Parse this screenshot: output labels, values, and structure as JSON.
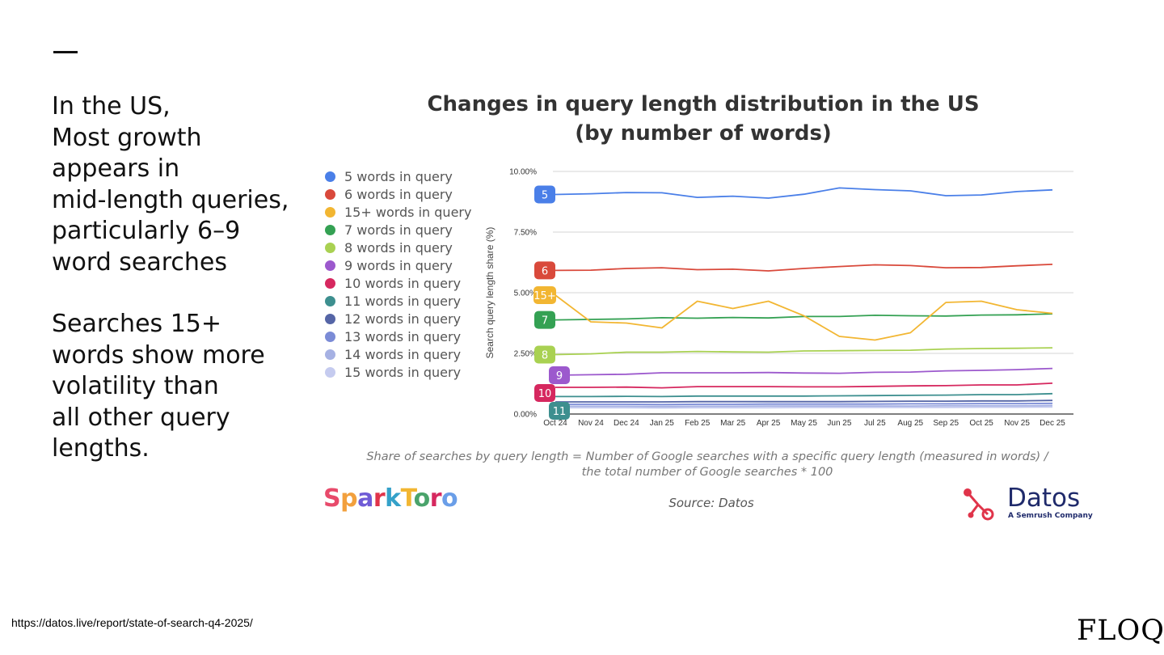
{
  "slide": {
    "text_lines_1": [
      "In the US,",
      "Most growth",
      "appears in",
      "mid-length queries,",
      "particularly 6–9",
      "word searches"
    ],
    "text_lines_2": [
      "Searches 15+",
      "words show more",
      "volatility than",
      "all other query",
      "lengths."
    ],
    "caption_line1": "Share of searches by query length = Number of Google searches with a specific query length (measured in words) /",
    "caption_line2": "the total number of Google searches * 100",
    "source": "Source: Datos",
    "sparktoro_logo": "SparkToro",
    "datos_logo": "Datos",
    "datos_sub": "A Semrush Company",
    "url": "https://datos.live/report/state-of-search-q4-2025/",
    "floq_logo": "FLOQ"
  },
  "chart_data": {
    "type": "line",
    "title_line1": "Changes in query length distribution in the US",
    "title_line2": "(by number of words)",
    "ylabel": "Search query length share (%)",
    "xlabel": "",
    "ylim": [
      0,
      10
    ],
    "yticks": [
      0,
      2.5,
      5,
      7.5,
      10
    ],
    "ytick_labels": [
      "0.00%",
      "2.50%",
      "5.00%",
      "7.50%",
      "10.00%"
    ],
    "categories": [
      "Oct 24",
      "Nov 24",
      "Dec 24",
      "Jan 25",
      "Feb 25",
      "Mar 25",
      "Apr 25",
      "May 25",
      "Jun 25",
      "Jul 25",
      "Aug 25",
      "Sep 25",
      "Oct 25",
      "Nov 25",
      "Dec 25"
    ],
    "grid": true,
    "legend_position": "left",
    "series": [
      {
        "name": "5 words in query",
        "color": "#4a7fe8",
        "badge": "5",
        "values": [
          9.05,
          9.08,
          9.13,
          9.12,
          8.93,
          8.98,
          8.9,
          9.06,
          9.32,
          9.25,
          9.2,
          9.0,
          9.03,
          9.17,
          9.24
        ]
      },
      {
        "name": "6 words in query",
        "color": "#d9493b",
        "badge": "6",
        "values": [
          5.92,
          5.93,
          6.0,
          6.03,
          5.95,
          5.97,
          5.9,
          6.0,
          6.08,
          6.15,
          6.12,
          6.03,
          6.04,
          6.11,
          6.17
        ]
      },
      {
        "name": "15+ words in query",
        "color": "#f2b632",
        "badge": "15+",
        "values": [
          4.9,
          3.8,
          3.75,
          3.55,
          4.65,
          4.35,
          4.65,
          4.05,
          3.2,
          3.05,
          3.35,
          4.6,
          4.65,
          4.3,
          4.15
        ]
      },
      {
        "name": "7 words in query",
        "color": "#34a153",
        "badge": "7",
        "values": [
          3.88,
          3.9,
          3.92,
          3.97,
          3.95,
          3.98,
          3.96,
          4.02,
          4.02,
          4.07,
          4.05,
          4.04,
          4.08,
          4.09,
          4.13
        ]
      },
      {
        "name": "8 words in query",
        "color": "#a9d152",
        "badge": "8",
        "values": [
          2.45,
          2.48,
          2.55,
          2.55,
          2.58,
          2.56,
          2.55,
          2.6,
          2.61,
          2.62,
          2.63,
          2.68,
          2.7,
          2.71,
          2.73
        ]
      },
      {
        "name": "9 words in query",
        "color": "#9c59cd",
        "badge": "9",
        "values": [
          1.6,
          1.62,
          1.64,
          1.7,
          1.7,
          1.7,
          1.71,
          1.69,
          1.68,
          1.72,
          1.73,
          1.78,
          1.8,
          1.83,
          1.88
        ]
      },
      {
        "name": "10 words in query",
        "color": "#d6285f",
        "badge": "10",
        "values": [
          1.1,
          1.1,
          1.11,
          1.08,
          1.13,
          1.13,
          1.13,
          1.12,
          1.12,
          1.14,
          1.16,
          1.17,
          1.2,
          1.2,
          1.27
        ]
      },
      {
        "name": "11 words in query",
        "color": "#3d8f8f",
        "badge": "11",
        "values": [
          0.72,
          0.72,
          0.73,
          0.72,
          0.74,
          0.74,
          0.74,
          0.74,
          0.75,
          0.76,
          0.77,
          0.78,
          0.8,
          0.8,
          0.84
        ]
      },
      {
        "name": "12 words in query",
        "color": "#5565a6",
        "badge": "",
        "values": [
          0.5,
          0.5,
          0.5,
          0.5,
          0.51,
          0.51,
          0.51,
          0.51,
          0.51,
          0.52,
          0.53,
          0.53,
          0.54,
          0.54,
          0.56
        ]
      },
      {
        "name": "13 words in query",
        "color": "#7b8bd6",
        "badge": "",
        "values": [
          0.4,
          0.4,
          0.4,
          0.39,
          0.4,
          0.4,
          0.41,
          0.41,
          0.41,
          0.41,
          0.42,
          0.42,
          0.43,
          0.43,
          0.44
        ]
      },
      {
        "name": "14 words in query",
        "color": "#a6b1e3",
        "badge": "",
        "values": [
          0.32,
          0.32,
          0.32,
          0.31,
          0.32,
          0.32,
          0.33,
          0.33,
          0.33,
          0.33,
          0.33,
          0.34,
          0.34,
          0.34,
          0.35
        ]
      },
      {
        "name": "15 words in query",
        "color": "#c5cbef",
        "badge": "",
        "values": [
          0.26,
          0.26,
          0.26,
          0.25,
          0.26,
          0.26,
          0.26,
          0.27,
          0.27,
          0.27,
          0.27,
          0.27,
          0.28,
          0.28,
          0.29
        ]
      }
    ]
  }
}
